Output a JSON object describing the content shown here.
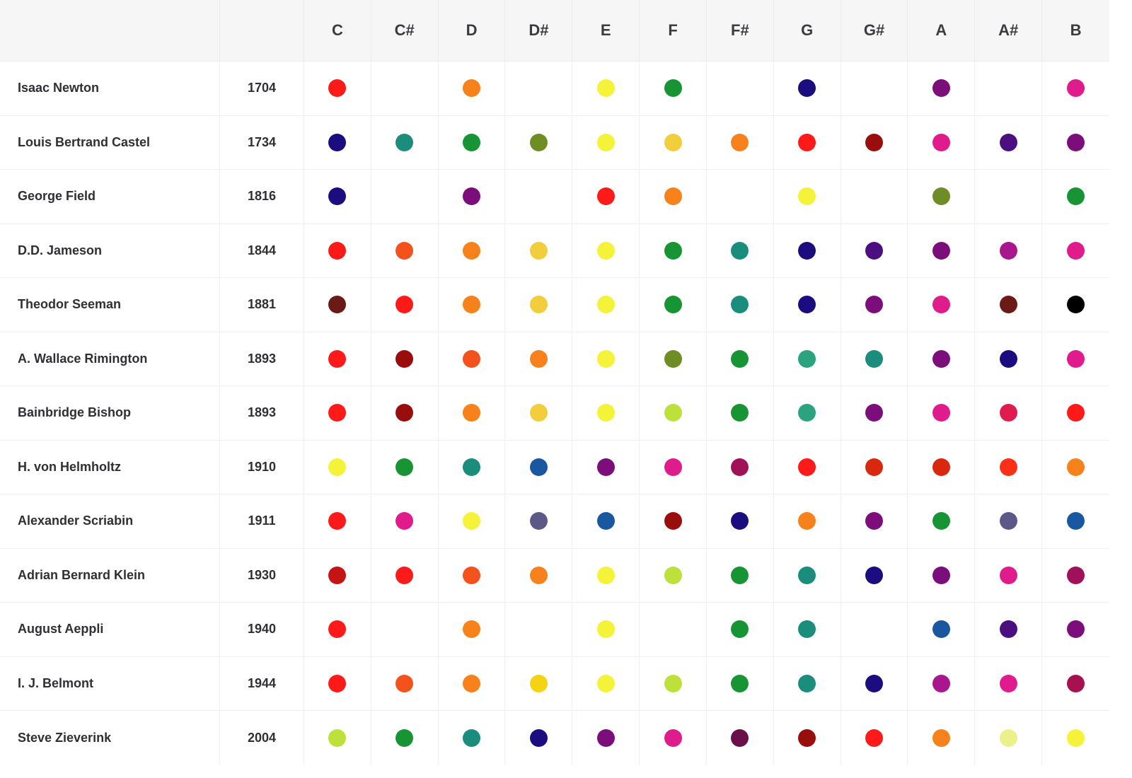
{
  "header": {
    "name_label": "",
    "year_label": "",
    "notes": [
      "C",
      "C#",
      "D",
      "D#",
      "E",
      "F",
      "F#",
      "G",
      "G#",
      "A",
      "A#",
      "B"
    ]
  },
  "rows": [
    {
      "name": "Isaac Newton",
      "year": "1704",
      "colors": [
        "#ff1a1a",
        null,
        "#f7811b",
        null,
        "#f5f23a",
        "#179534",
        null,
        "#1b0d80",
        null,
        "#7c0e7c",
        null,
        "#e01b8c"
      ]
    },
    {
      "name": "Louis Bertrand Castel",
      "year": "1734",
      "colors": [
        "#1b0d80",
        "#1a8d7d",
        "#179534",
        "#6f8d25",
        "#f5f23a",
        "#f3ce3c",
        "#f7811b",
        "#ff1a1a",
        "#9a0d0d",
        "#e01b8c",
        "#4b0f80",
        "#7c0e7c"
      ]
    },
    {
      "name": "George Field",
      "year": "1816",
      "colors": [
        "#1b0d80",
        null,
        "#7c0e7c",
        null,
        "#ff1a1a",
        "#f7811b",
        null,
        "#f5f23a",
        null,
        "#6f8d25",
        null,
        "#179534"
      ]
    },
    {
      "name": "D.D. Jameson",
      "year": "1844",
      "colors": [
        "#ff1a1a",
        "#f4521c",
        "#f7811b",
        "#f3ce3c",
        "#f5f23a",
        "#179534",
        "#1a8d7d",
        "#1b0d80",
        "#4b0f80",
        "#7c0e7c",
        "#a8178e",
        "#e01b8c"
      ]
    },
    {
      "name": "Theodor Seeman",
      "year": "1881",
      "colors": [
        "#6b1a16",
        "#ff1a1a",
        "#f7811b",
        "#f3ce3c",
        "#f5f23a",
        "#179534",
        "#1a8d7d",
        "#1b0d80",
        "#7c0e7c",
        "#e01b8c",
        "#6b1a16",
        "#000000"
      ]
    },
    {
      "name": "A. Wallace Rimington",
      "year": "1893",
      "colors": [
        "#ff1a1a",
        "#9a0d0d",
        "#f4521c",
        "#f7811b",
        "#f5f23a",
        "#6f8d25",
        "#179534",
        "#2aa37e",
        "#1a8d7d",
        "#7c0e7c",
        "#1b0d80",
        "#e01b8c"
      ]
    },
    {
      "name": "Bainbridge Bishop",
      "year": "1893",
      "colors": [
        "#ff1a1a",
        "#9a0d0d",
        "#f7811b",
        "#f3ce3c",
        "#f5f23a",
        "#bde03a",
        "#179534",
        "#2aa37e",
        "#7c0e7c",
        "#e01b8c",
        "#e01b50",
        "#ff1a1a"
      ]
    },
    {
      "name": "H. von Helmholtz",
      "year": "1910",
      "colors": [
        "#f5f23a",
        "#179534",
        "#1a8d7d",
        "#1958a0",
        "#7c0e7c",
        "#e01b8c",
        "#a0115a",
        "#ff1a1a",
        "#d8290f",
        "#d8290f",
        "#fa3018",
        "#f7811b"
      ]
    },
    {
      "name": "Alexander Scriabin",
      "year": "1911",
      "colors": [
        "#ff1a1a",
        "#e01b8c",
        "#f5f23a",
        "#5c5887",
        "#1958a0",
        "#9a0d0d",
        "#1b0d80",
        "#f7811b",
        "#7c0e7c",
        "#179534",
        "#5c5887",
        "#1958a0"
      ]
    },
    {
      "name": "Adrian Bernard Klein",
      "year": "1930",
      "colors": [
        "#c41414",
        "#ff1a1a",
        "#f4521c",
        "#f7811b",
        "#f5f23a",
        "#bde03a",
        "#179534",
        "#1a8d7d",
        "#1b0d80",
        "#7c0e7c",
        "#e01b8c",
        "#a0115a"
      ]
    },
    {
      "name": "August Aeppli",
      "year": "1940",
      "colors": [
        "#ff1a1a",
        null,
        "#f7811b",
        null,
        "#f5f23a",
        null,
        "#179534",
        "#1a8d7d",
        null,
        "#1958a0",
        "#4b0f80",
        "#7c0e7c"
      ]
    },
    {
      "name": "I. J. Belmont",
      "year": "1944",
      "colors": [
        "#ff1a1a",
        "#f4521c",
        "#f7811b",
        "#f5d312",
        "#f5f23a",
        "#bde03a",
        "#179534",
        "#1a8d7d",
        "#1b0d80",
        "#a8178e",
        "#e01b8c",
        "#a8114f"
      ]
    },
    {
      "name": "Steve Zieverink",
      "year": "2004",
      "colors": [
        "#bde03a",
        "#179534",
        "#1a8d7d",
        "#1b0d80",
        "#7c0e7c",
        "#e01b8c",
        "#6b0f4a",
        "#9a0d0d",
        "#ff1a1a",
        "#f7811b",
        "#ecf08a",
        "#f5f23a"
      ]
    }
  ]
}
